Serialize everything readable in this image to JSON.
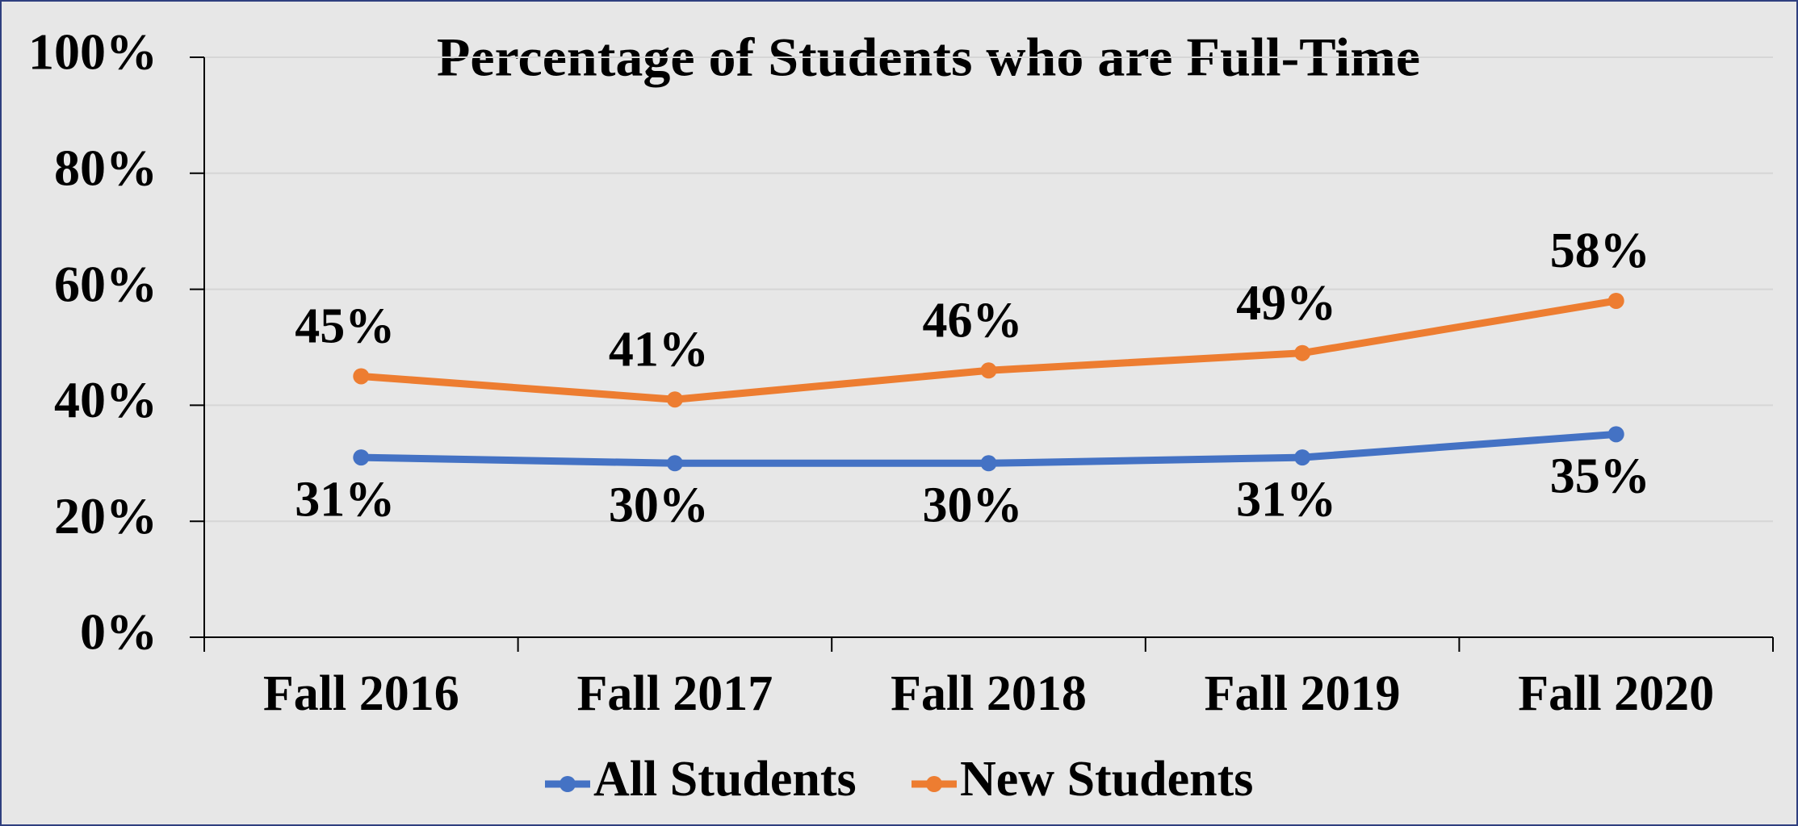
{
  "chart_data": {
    "type": "line",
    "title": "Percentage of Students who are Full-Time",
    "categories": [
      "Fall 2016",
      "Fall 2017",
      "Fall 2018",
      "Fall 2019",
      "Fall 2020"
    ],
    "series": [
      {
        "name": "All Students",
        "color": "#4472c4",
        "values": [
          31,
          30,
          30,
          31,
          35
        ],
        "value_labels": [
          "31%",
          "30%",
          "30%",
          "31%",
          "35%"
        ],
        "label_position": "below"
      },
      {
        "name": "New Students",
        "color": "#ed7d31",
        "values": [
          45,
          41,
          46,
          49,
          58
        ],
        "value_labels": [
          "45%",
          "41%",
          "46%",
          "49%",
          "58%"
        ],
        "label_position": "above"
      }
    ],
    "ylim": [
      0,
      100
    ],
    "yticks": [
      {
        "value": 0,
        "label": "0%"
      },
      {
        "value": 20,
        "label": "20%"
      },
      {
        "value": 40,
        "label": "40%"
      },
      {
        "value": 60,
        "label": "60%"
      },
      {
        "value": 80,
        "label": "80%"
      },
      {
        "value": 100,
        "label": "100%"
      }
    ],
    "grid": true,
    "legend": "bottom"
  }
}
